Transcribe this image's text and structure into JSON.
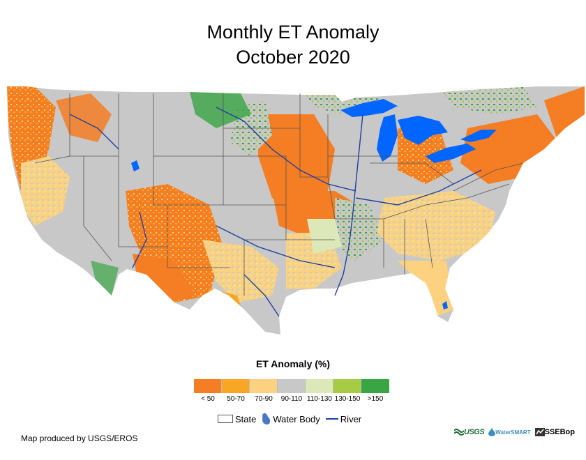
{
  "title": {
    "line1": "Monthly ET Anomaly",
    "line2": "October 2020"
  },
  "legend": {
    "title": "ET Anomaly (%)",
    "classes": [
      {
        "label": "< 50",
        "color": "#f57d23"
      },
      {
        "label": "50-70",
        "color": "#f8a623"
      },
      {
        "label": "70-90",
        "color": "#fcd281"
      },
      {
        "label": "90-110",
        "color": "#c8c8c8"
      },
      {
        "label": "110-130",
        "color": "#dde8b8"
      },
      {
        "label": "130-150",
        "color": "#a6cc45"
      },
      {
        "label": ">150",
        "color": "#3aa544"
      }
    ]
  },
  "layers": {
    "state": "State",
    "water_body": "Water Body",
    "river": "River"
  },
  "credit": "Map produced by USGS/EROS",
  "logos": {
    "usgs": "USGS",
    "smart": "WaterSMART",
    "ssebop": "SSEBop"
  },
  "colors": {
    "water": "#0066ff",
    "river": "#1f3f9e",
    "state_border": "#555555"
  }
}
